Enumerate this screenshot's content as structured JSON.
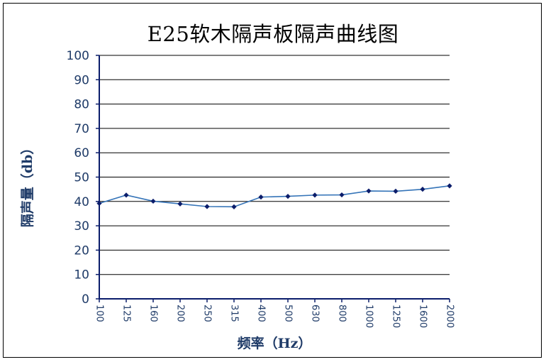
{
  "chart_data": {
    "type": "line",
    "title": "E25软木隔声板隔声曲线图",
    "xlabel": "频率（Hz）",
    "ylabel": "隔声量（db）",
    "categories": [
      "100",
      "125",
      "160",
      "200",
      "250",
      "315",
      "400",
      "500",
      "630",
      "800",
      "1000",
      "1250",
      "1600",
      "2000"
    ],
    "series": [
      {
        "values": [
          39.2,
          42.6,
          40.1,
          39.0,
          37.9,
          37.8,
          41.8,
          42.1,
          42.6,
          42.7,
          44.3,
          44.2,
          45.0,
          46.4
        ]
      }
    ],
    "ylim": [
      0,
      100
    ],
    "ystep": 10,
    "grid": true,
    "legend": "none",
    "colors": {
      "line": "#3574b8",
      "marker": "#0b1d6b",
      "axis": "#0b1d6b",
      "grid": "#000000",
      "text": "#1f3b68"
    }
  }
}
